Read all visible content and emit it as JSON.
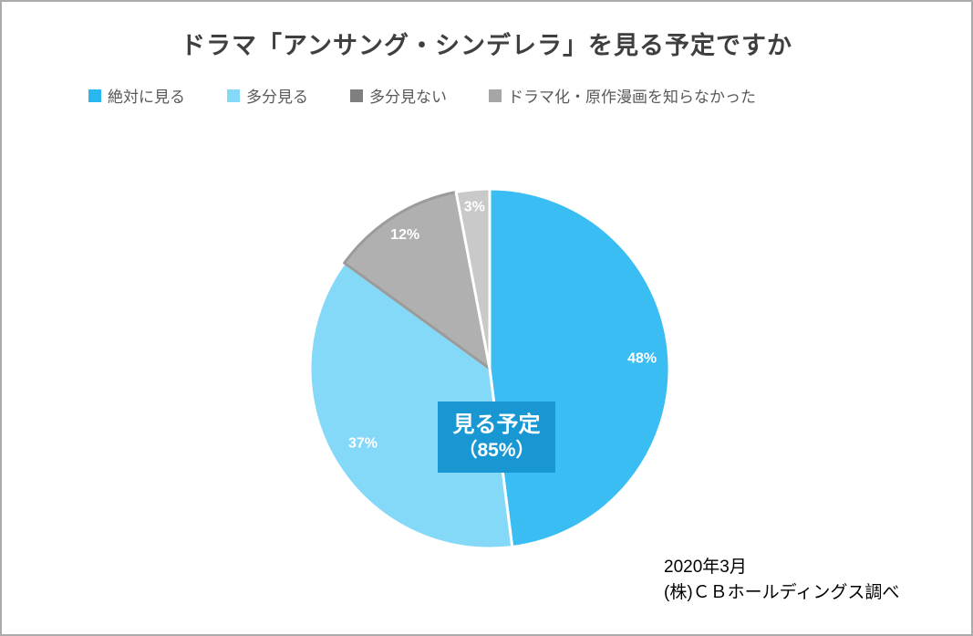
{
  "title": "ドラマ「アンサング・シンデレラ」を見る予定ですか",
  "chart_data": {
    "type": "pie",
    "title": "ドラマ「アンサング・シンデレラ」を見る予定ですか",
    "labels": [
      "絶対に見る",
      "多分見る",
      "多分見ない",
      "ドラマ化・原作漫画を知らなかった"
    ],
    "values": [
      48,
      37,
      12,
      3
    ],
    "value_labels": [
      "48%",
      "37%",
      "12%",
      "3%"
    ],
    "colors": [
      "#3abdf2",
      "#84d8f8",
      "#b0b0b0",
      "#c9c9c9"
    ],
    "slice_borders": [
      "#ffffff",
      "#ffffff",
      "#9b9b9b",
      "#ffffff"
    ],
    "legend_colors": [
      "#29b7ef",
      "#84d8f8",
      "#7f7f7f",
      "#a6a6a6"
    ],
    "legend_position": "top",
    "start_angle_deg": 0,
    "direction": "clockwise",
    "annotation": {
      "line1": "見る予定",
      "line2": "（85%）",
      "bg": "#1897d3",
      "text_color": "#ffffff"
    }
  },
  "source": {
    "line1": "2020年3月",
    "line2": "(株)ＣＢホールディングス調べ"
  }
}
